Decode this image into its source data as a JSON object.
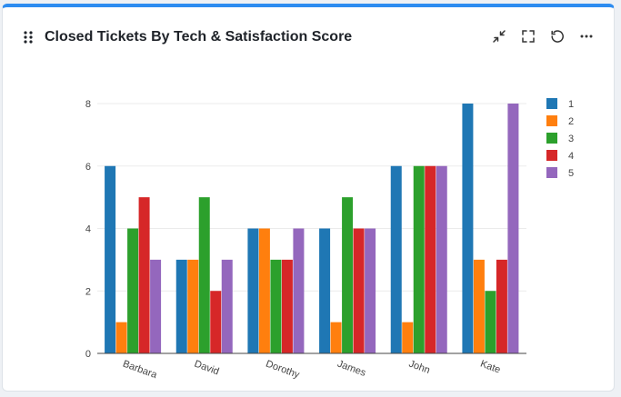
{
  "widget": {
    "title": "Closed Tickets By Tech & Satisfaction Score",
    "accent_color": "#2d8cf0",
    "actions": [
      {
        "icon": "collapse-icon",
        "label": "Collapse"
      },
      {
        "icon": "fullscreen-icon",
        "label": "Fullscreen"
      },
      {
        "icon": "refresh-icon",
        "label": "Refresh"
      },
      {
        "icon": "more-icon",
        "label": "More options"
      }
    ]
  },
  "chart_data": {
    "type": "bar",
    "title": "",
    "xlabel": "",
    "ylabel": "",
    "categories": [
      "Barbara",
      "David",
      "Dorothy",
      "James",
      "John",
      "Kate"
    ],
    "series": [
      {
        "name": "1",
        "color": "#1f77b4",
        "values": [
          6,
          3,
          4,
          4,
          6,
          8
        ]
      },
      {
        "name": "2",
        "color": "#ff7f0e",
        "values": [
          1,
          3,
          4,
          1,
          1,
          3
        ]
      },
      {
        "name": "3",
        "color": "#2ca02c",
        "values": [
          4,
          5,
          3,
          5,
          6,
          2
        ]
      },
      {
        "name": "4",
        "color": "#d62728",
        "values": [
          5,
          2,
          3,
          4,
          6,
          3
        ]
      },
      {
        "name": "5",
        "color": "#9467bd",
        "values": [
          3,
          3,
          4,
          4,
          6,
          8
        ]
      }
    ],
    "ylim": [
      0,
      8
    ],
    "yticks": [
      "0",
      "2",
      "4",
      "6",
      "8"
    ],
    "grid": true,
    "legend_position": "right"
  }
}
